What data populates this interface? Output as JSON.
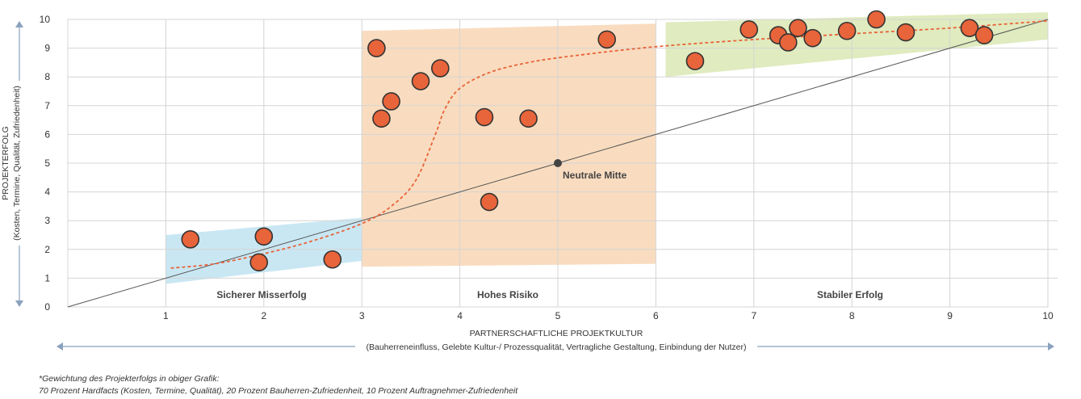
{
  "colors": {
    "point": "#e8643a",
    "point_stroke": "#333333",
    "trend": "#e8643a",
    "zone_misserfolg": "#bfe3f1",
    "zone_risiko": "#f8d6b4",
    "zone_erfolg": "#dbe8b4",
    "arrow": "#8aa2bd",
    "grid": "#d4d4d4"
  },
  "chart_data": {
    "type": "scatter",
    "xlim": [
      0,
      10
    ],
    "ylim": [
      0,
      10
    ],
    "x_ticks": [
      "1",
      "2",
      "3",
      "4",
      "5",
      "6",
      "7",
      "8",
      "9",
      "10"
    ],
    "y_ticks": [
      "0",
      "1",
      "2",
      "3",
      "4",
      "5",
      "6",
      "7",
      "8",
      "9",
      "10"
    ],
    "xlabel": "PARTNERSCHAFTLICHE PROJEKTKULTUR",
    "xlabel_sub": "(Bauherreneinfluss, Gelebte Kultur-/ Prozessqualität, Vertragliche Gestaltung, Einbindung der Nutzer)",
    "ylabel": "PROJEKTERFOLG",
    "ylabel_sub": "(Kosten, Termine, Qualität, Zufriedenheit)",
    "zones": [
      {
        "name": "Sicherer Misserfolg",
        "x_range": [
          1,
          3
        ],
        "y_bottom": [
          0.8,
          1.6
        ],
        "y_top": [
          2.5,
          3.1
        ]
      },
      {
        "name": "Hohes Risiko",
        "x_range": [
          3,
          6
        ],
        "y_bottom": [
          1.4,
          1.5
        ],
        "y_top": [
          9.6,
          9.85
        ]
      },
      {
        "name": "Stabiler Erfolg",
        "x_range": [
          6.1,
          10
        ],
        "y_bottom": [
          8.0,
          9.3
        ],
        "y_top": [
          9.9,
          10.25
        ]
      }
    ],
    "points": [
      {
        "x": 1.25,
        "y": 2.35
      },
      {
        "x": 2.0,
        "y": 2.45
      },
      {
        "x": 1.95,
        "y": 1.55
      },
      {
        "x": 2.7,
        "y": 1.65
      },
      {
        "x": 3.15,
        "y": 9.0
      },
      {
        "x": 3.3,
        "y": 7.15
      },
      {
        "x": 3.2,
        "y": 6.55
      },
      {
        "x": 3.6,
        "y": 7.85
      },
      {
        "x": 3.8,
        "y": 8.3
      },
      {
        "x": 4.25,
        "y": 6.6
      },
      {
        "x": 4.7,
        "y": 6.55
      },
      {
        "x": 4.3,
        "y": 3.65
      },
      {
        "x": 5.5,
        "y": 9.3
      },
      {
        "x": 6.4,
        "y": 8.55
      },
      {
        "x": 6.95,
        "y": 9.65
      },
      {
        "x": 7.25,
        "y": 9.45
      },
      {
        "x": 7.35,
        "y": 9.2
      },
      {
        "x": 7.45,
        "y": 9.7
      },
      {
        "x": 7.6,
        "y": 9.35
      },
      {
        "x": 7.95,
        "y": 9.6
      },
      {
        "x": 8.25,
        "y": 10.0
      },
      {
        "x": 8.55,
        "y": 9.55
      },
      {
        "x": 9.2,
        "y": 9.7
      },
      {
        "x": 9.35,
        "y": 9.45
      }
    ],
    "reference_line": {
      "from": [
        0,
        0
      ],
      "to": [
        10,
        10
      ]
    },
    "trend_line": [
      [
        1.05,
        1.35
      ],
      [
        1.5,
        1.5
      ],
      [
        2.0,
        1.85
      ],
      [
        2.5,
        2.3
      ],
      [
        3.0,
        2.9
      ],
      [
        3.3,
        3.5
      ],
      [
        3.55,
        4.4
      ],
      [
        3.75,
        6.0
      ],
      [
        3.85,
        6.9
      ],
      [
        4.0,
        7.6
      ],
      [
        4.3,
        8.15
      ],
      [
        4.7,
        8.5
      ],
      [
        5.2,
        8.75
      ],
      [
        6.0,
        9.05
      ],
      [
        7.0,
        9.3
      ],
      [
        8.0,
        9.5
      ],
      [
        9.0,
        9.7
      ],
      [
        10.0,
        9.95
      ]
    ],
    "neutral_point": {
      "x": 5,
      "y": 5,
      "label": "Neutrale Mitte"
    },
    "footnote": {
      "title": "*Gewichtung des Projekterfolgs in obiger Grafik:",
      "text": "70 Prozent Hardfacts (Kosten, Termine, Qualität), 20 Prozent Bauherren-Zufriedenheit, 10 Prozent Auftragnehmer-Zufriedenheit"
    }
  }
}
